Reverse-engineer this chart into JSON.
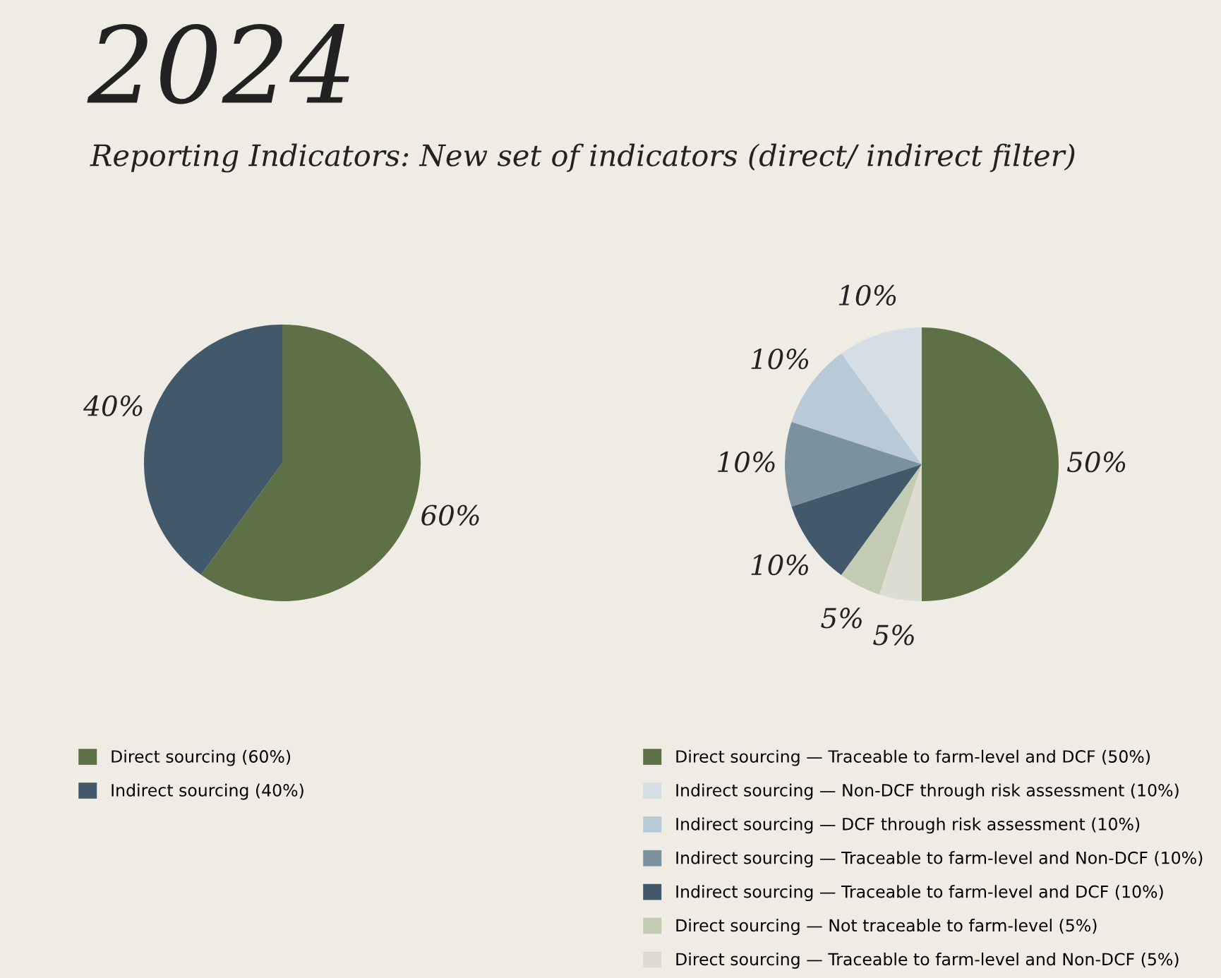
{
  "chart_data": [
    {
      "type": "pie",
      "title": "2024",
      "subtitle": "Reporting Indicators: New set of indicators (direct/ indirect filter)",
      "categories": [
        "Direct sourcing (60%)",
        "Indirect sourcing (40%)"
      ],
      "values": [
        60,
        40
      ],
      "colors": [
        "#5e7046",
        "#41596a"
      ],
      "value_labels": [
        "60%",
        "40%"
      ],
      "legend": "bottom"
    },
    {
      "type": "pie",
      "categories": [
        "Direct sourcing — Traceable to farm-level and DCF (50%)",
        "Indirect sourcing — Non-DCF through risk assessment (10%)",
        "Indirect sourcing — DCF through risk assessment (10%)",
        "Indirect sourcing — Traceable to farm-level and Non-DCF (10%)",
        "Indirect sourcing — Traceable to farm-level and DCF (10%)",
        "Direct sourcing — Not traceable to farm-level (5%)",
        "Direct sourcing — Traceable to farm-level and Non-DCF (5%)"
      ],
      "values": [
        50,
        10,
        10,
        10,
        10,
        5,
        5
      ],
      "colors": [
        "#5e7046",
        "#d5dde5",
        "#b8c9d7",
        "#7a929e",
        "#41596a",
        "#c3cbb4",
        "#dcdcd0"
      ],
      "value_labels": [
        "50%",
        "10%",
        "10%",
        "10%",
        "10%",
        "5%",
        "5%"
      ],
      "legend": "bottom"
    }
  ]
}
